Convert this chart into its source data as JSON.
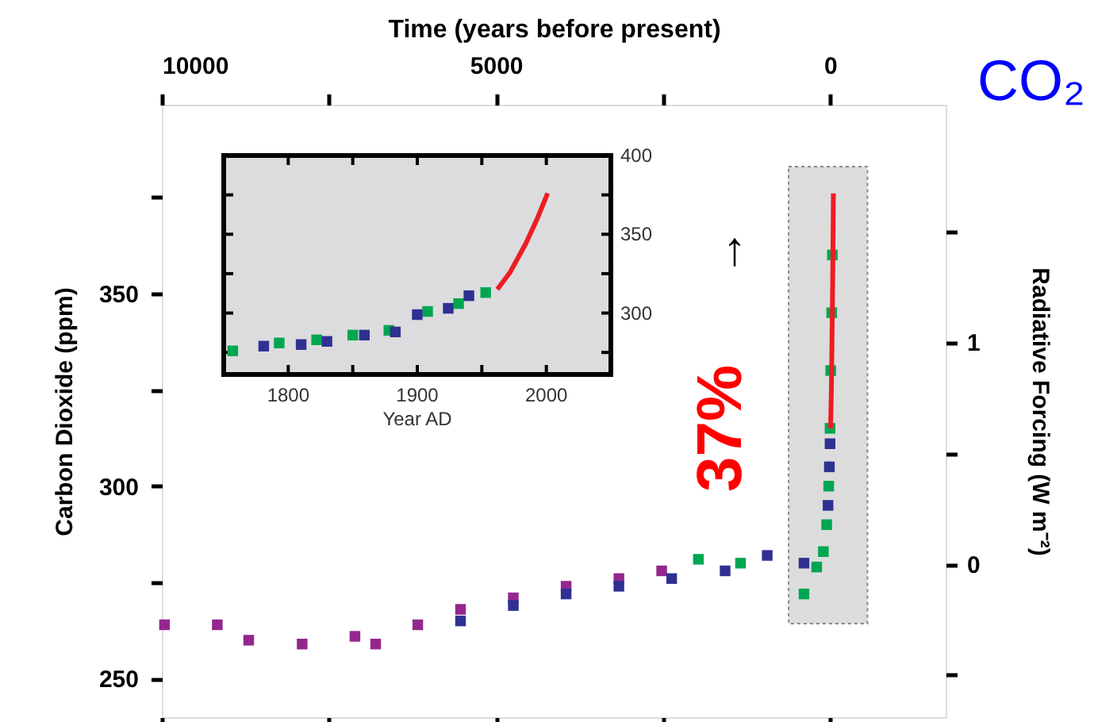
{
  "chart_data": [
    {
      "type": "scatter",
      "title": "CO₂",
      "xlabel": "Time (years before present)",
      "ylabel": "Carbon Dioxide (ppm)",
      "y2label": "Radiative Forcing (W m⁻²)",
      "xlim": [
        10000,
        -1730
      ],
      "xticks": [
        10000,
        {
          "value": 7500,
          "label": null
        },
        5000,
        {
          "value": 2500,
          "label": null
        },
        0
      ],
      "ylim": [
        240,
        399
      ],
      "yticks": [
        250,
        {
          "value": 275,
          "label": null
        },
        300,
        {
          "value": 325,
          "label": null
        },
        350,
        {
          "value": 375,
          "label": null
        }
      ],
      "y2lim": [
        -0.69,
        2.07
      ],
      "y2ticks": [
        {
          "value": -0.5,
          "label": null
        },
        0,
        {
          "value": 0.5,
          "label": null
        },
        1,
        {
          "value": 1.5,
          "label": null
        }
      ],
      "grid": false,
      "bands": [
        {
          "axis": "x",
          "from": 620,
          "to": -560,
          "color": "#dcdcdc"
        }
      ],
      "annotations": [
        "37%",
        "↑"
      ],
      "series": [
        {
          "color": "#93278f",
          "marker": "square",
          "x": [
            9960,
            9170,
            8700,
            7900,
            7110,
            6800,
            6170,
            5530,
            4740,
            3950,
            3160,
            2520
          ],
          "values": [
            264,
            264,
            260,
            259,
            261,
            259,
            264,
            268,
            271,
            274,
            276,
            278
          ]
        },
        {
          "color": "#2e3192",
          "marker": "square",
          "x": [
            5530,
            4740,
            3950,
            3160,
            2370,
            1570,
            940,
            390,
            70,
            30,
            10,
            0
          ],
          "values": [
            265,
            269,
            272,
            274,
            276,
            278,
            282,
            280,
            null,
            295,
            305,
            311
          ]
        },
        {
          "color": "#00a651",
          "marker": "square",
          "x": [
            1970,
            1340,
            390,
            200,
            100,
            50,
            20,
            0,
            -10,
            -25,
            -35
          ],
          "values": [
            281,
            280,
            272,
            279,
            283,
            290,
            300,
            315,
            330,
            345,
            360
          ]
        },
        {
          "type": "line",
          "color": "#ed1c24",
          "x": [
            -8,
            -20,
            -30,
            -40,
            -50
          ],
          "values": [
            315,
            325,
            339,
            354,
            376
          ]
        }
      ]
    },
    {
      "type": "scatter",
      "xlabel": "Year AD",
      "xlim": [
        1750,
        2050
      ],
      "xticks": [
        1800,
        {
          "value": 1850,
          "label": null
        },
        1900,
        {
          "value": 1950,
          "label": null
        },
        2000
      ],
      "ylim": [
        261,
        400
      ],
      "yticks": [
        {
          "value": 275,
          "label": null
        },
        300,
        {
          "value": 325,
          "label": null
        },
        350,
        {
          "value": 375,
          "label": null
        },
        400
      ],
      "series": [
        {
          "color": "#00a651",
          "marker": "square",
          "x": [
            1757,
            1793,
            1822,
            1850,
            1878,
            1908,
            1932,
            1953
          ],
          "values": [
            276,
            281,
            283,
            286,
            289,
            301,
            306,
            313
          ]
        },
        {
          "color": "#2e3192",
          "marker": "square",
          "x": [
            1781,
            1810,
            1830,
            1859,
            1883,
            1900,
            1924,
            1940
          ],
          "values": [
            279,
            280,
            282,
            286,
            288,
            299,
            303,
            311
          ]
        },
        {
          "type": "line",
          "color": "#ed1c24",
          "x": [
            1962,
            1972,
            1984,
            1993,
            2001
          ],
          "values": [
            315,
            326,
            344,
            360,
            376
          ]
        }
      ]
    }
  ]
}
